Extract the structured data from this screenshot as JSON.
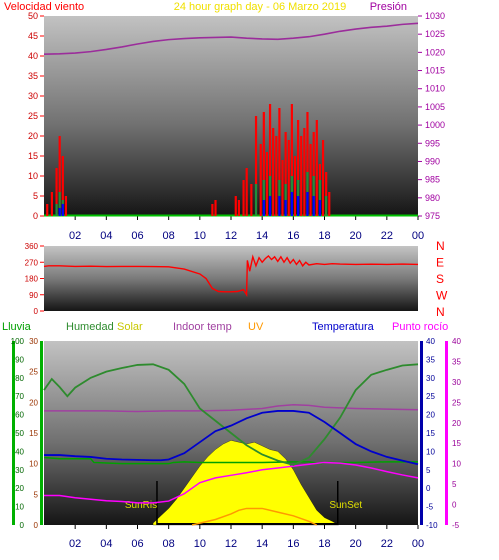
{
  "colors": {
    "wind_speed": "#ff0000",
    "wind_gust": "#1f8f3a",
    "wind_avg": "#0000ff",
    "pressure": "#9b2d9b",
    "direction": "#ff0000",
    "rain": "#00a000",
    "humidity": "#2e8b2e",
    "solar": "#ffff00",
    "indoor": "#a040a0",
    "uv": "#ff9900",
    "temperature": "#0000cc",
    "dewpoint": "#ff00ff",
    "title_color": "#f0e000",
    "label_red": "#ff0000",
    "label_purple": "#a000a0"
  },
  "chart_data": [
    {
      "type": "line",
      "title": "24 hour graph day - 06 Marzo 2019",
      "left_label": "Velocidad viento",
      "right_label": "Presión",
      "left_ticks": [
        0,
        5,
        10,
        15,
        20,
        25,
        30,
        35,
        40,
        45,
        50
      ],
      "right_ticks": [
        975,
        980,
        985,
        990,
        995,
        1000,
        1005,
        1010,
        1015,
        1020,
        1025,
        1030
      ],
      "x_ticks": [
        "02",
        "04",
        "06",
        "08",
        "10",
        "12",
        "14",
        "16",
        "18",
        "20",
        "22",
        "00"
      ],
      "ylim_left": [
        0,
        50
      ],
      "ylim_right": [
        975,
        1030
      ],
      "series": [
        {
          "key": "pressure",
          "axis": "right",
          "x": [
            0,
            1,
            2,
            3,
            4,
            5,
            6,
            7,
            8,
            9,
            10,
            11,
            12,
            13,
            14,
            15,
            16,
            17,
            18,
            19,
            20,
            21,
            22,
            23,
            24
          ],
          "y": [
            1019.5,
            1019.6,
            1019.8,
            1020.2,
            1020.8,
            1021.5,
            1022.3,
            1023.0,
            1023.5,
            1023.8,
            1024.0,
            1024.1,
            1024.2,
            1023.9,
            1023.7,
            1023.6,
            1023.9,
            1024.3,
            1025.0,
            1025.8,
            1026.4,
            1026.9,
            1027.2,
            1027.7,
            1028.0
          ]
        },
        {
          "key": "wind_speed",
          "axis": "left",
          "style": "bars",
          "x": [
            0.2,
            0.5,
            0.8,
            1.0,
            1.2,
            1.4,
            10.8,
            11.0,
            12.3,
            12.5,
            12.8,
            13.0,
            13.3,
            13.6,
            13.9,
            14.1,
            14.3,
            14.5,
            14.7,
            14.9,
            15.1,
            15.3,
            15.5,
            15.7,
            15.9,
            16.1,
            16.3,
            16.5,
            16.7,
            16.9,
            17.1,
            17.3,
            17.5,
            17.7,
            17.9,
            18.1,
            18.3
          ],
          "y": [
            3,
            6,
            12,
            20,
            15,
            5,
            3,
            4,
            5,
            4,
            9,
            12,
            8,
            25,
            18,
            26,
            16,
            28,
            22,
            20,
            27,
            14,
            21,
            19,
            28,
            15,
            24,
            20,
            22,
            26,
            18,
            21,
            24,
            13,
            19,
            11,
            6
          ]
        },
        {
          "key": "wind_gust",
          "axis": "left",
          "style": "bars",
          "x": [
            0.8,
            1.0,
            1.2,
            13.6,
            14.1,
            14.5,
            15.1,
            15.5,
            15.9,
            16.3,
            16.9,
            17.3,
            17.7,
            18.1
          ],
          "y": [
            3,
            6,
            4,
            8,
            9,
            10,
            9,
            8,
            10,
            9,
            11,
            10,
            9,
            5
          ]
        },
        {
          "key": "wind_avg",
          "axis": "left",
          "style": "bars",
          "x": [
            1.0,
            1.2,
            14.1,
            14.5,
            15.1,
            15.5,
            15.9,
            16.3,
            16.9,
            17.3,
            17.7
          ],
          "y": [
            2,
            3,
            4,
            5,
            5,
            4,
            6,
            5,
            6,
            5,
            4
          ]
        }
      ]
    },
    {
      "type": "line",
      "left_ticks": [
        0,
        90,
        180,
        270,
        360
      ],
      "right_letters": [
        "N",
        "W",
        "S",
        "E",
        "N"
      ],
      "ylim": [
        0,
        360
      ],
      "series": [
        {
          "key": "direction",
          "x": [
            0,
            0.3,
            1.0,
            2.0,
            3.0,
            4.0,
            5.0,
            6.0,
            7.0,
            8.0,
            9.0,
            10.0,
            10.4,
            10.8,
            11.2,
            11.6,
            12.0,
            12.4,
            12.8,
            13.0,
            13.05,
            13.2,
            13.4,
            13.6,
            13.8,
            14.0,
            14.2,
            14.4,
            14.6,
            14.8,
            15.0,
            15.2,
            15.4,
            15.6,
            15.8,
            16.0,
            16.2,
            16.4,
            16.6,
            16.8,
            17.0,
            17.5,
            18.0,
            18.5,
            19.0,
            20.0,
            21.0,
            22.0,
            23.0,
            24.0
          ],
          "y": [
            247,
            250,
            250,
            247,
            248,
            246,
            247,
            247,
            246,
            245,
            232,
            205,
            180,
            125,
            108,
            106,
            106,
            108,
            118,
            90,
            280,
            220,
            300,
            250,
            295,
            270,
            290,
            305,
            285,
            300,
            275,
            300,
            270,
            295,
            265,
            285,
            258,
            280,
            250,
            270,
            255,
            262,
            258,
            262,
            260,
            258,
            259,
            258,
            260,
            258
          ]
        }
      ]
    },
    {
      "type": "line",
      "labels": {
        "rain": "Lluvia",
        "humidity": "Humedad",
        "solar": "Solar",
        "indoor": "Indoor temp",
        "uv": "UV",
        "temperature": "Temperatura",
        "dewpoint": "Punto rocío",
        "sunrise": "SunRis",
        "sunset": "SunSet"
      },
      "rain_ticks": [
        0,
        10,
        20,
        30,
        40,
        50,
        60,
        70,
        80,
        90,
        100
      ],
      "humidity_ticks": [
        0,
        5,
        10,
        15,
        20,
        25,
        30
      ],
      "temp_ticks": [
        -10,
        -5,
        0,
        5,
        10,
        15,
        20,
        25,
        30,
        35,
        40
      ],
      "dew_ticks": [
        -5,
        0,
        5,
        10,
        15,
        20,
        25,
        30,
        35,
        40
      ],
      "x_ticks": [
        "02",
        "04",
        "06",
        "08",
        "10",
        "12",
        "14",
        "16",
        "18",
        "20",
        "22",
        "00"
      ],
      "sunrise_hour": 7.25,
      "sunset_hour": 18.85,
      "series": [
        {
          "key": "humidity",
          "axis": "humidity",
          "x": [
            0,
            0.5,
            1.0,
            1.5,
            2.0,
            3.0,
            4.0,
            5.0,
            6.0,
            7.0,
            8.0,
            9.0,
            9.5,
            10.0,
            11.0,
            12.0,
            13.0,
            14.0,
            15.0,
            16.0,
            17.0,
            18.0,
            19.0,
            20.0,
            21.0,
            22.0,
            23.0,
            24.0
          ],
          "y": [
            22.0,
            23.8,
            22.5,
            21.0,
            22.4,
            24.0,
            25.0,
            25.6,
            26.1,
            26.2,
            25.3,
            23.0,
            21.0,
            19.0,
            17.0,
            15.0,
            13.0,
            11.5,
            10.5,
            9.8,
            11.0,
            14.0,
            17.5,
            22.0,
            24.5,
            25.3,
            26.0,
            26.2
          ]
        },
        {
          "key": "indoor",
          "axis": "humidity",
          "x": [
            0,
            2,
            4,
            6,
            8,
            10,
            12,
            14,
            15,
            16,
            17,
            18,
            20,
            22,
            24
          ],
          "y": [
            18.6,
            18.6,
            18.6,
            18.5,
            18.6,
            18.6,
            18.7,
            19.0,
            19.4,
            19.6,
            19.5,
            19.2,
            19.0,
            18.9,
            18.8
          ]
        },
        {
          "key": "rain",
          "axis": "humidity",
          "x": [
            0,
            1,
            2,
            3,
            3.2,
            4,
            5,
            6,
            7,
            8,
            8.3,
            9,
            10,
            12,
            14,
            16,
            17,
            17.8,
            18,
            19,
            20,
            22,
            24
          ],
          "y": [
            11.0,
            10.8,
            10.8,
            10.8,
            10.2,
            10.1,
            10.0,
            10.0,
            10.0,
            10.0,
            10.2,
            10.3,
            10.2,
            10.2,
            10.2,
            10.3,
            10.3,
            10.0,
            10.2,
            10.2,
            10.2,
            10.3,
            10.3
          ]
        },
        {
          "key": "temperature",
          "axis": "temp",
          "x": [
            0,
            1,
            2,
            3,
            4,
            5,
            6,
            7,
            7.5,
            8,
            9,
            10,
            11,
            12,
            13,
            14,
            15,
            16,
            17,
            18,
            19,
            20,
            21,
            22,
            23,
            24
          ],
          "y": [
            9.0,
            9.0,
            8.7,
            8.5,
            8.0,
            7.8,
            7.7,
            7.6,
            7.6,
            7.8,
            9.5,
            12.5,
            15.5,
            17.0,
            19.0,
            20.5,
            21.0,
            21.0,
            20.5,
            18.0,
            15.0,
            12.0,
            10.0,
            8.5,
            7.5,
            6.5
          ]
        },
        {
          "key": "dewpoint",
          "axis": "temp",
          "x": [
            0,
            1,
            2,
            3,
            4,
            5,
            6,
            7,
            8,
            9,
            10,
            11,
            12,
            13,
            14,
            15,
            16,
            17,
            18,
            19,
            20,
            21,
            22,
            23,
            24
          ],
          "y": [
            -2.0,
            -2.0,
            -2.6,
            -3.0,
            -3.4,
            -3.6,
            -4.0,
            -4.0,
            -3.5,
            -1.5,
            1.5,
            2.8,
            3.5,
            4.2,
            5.0,
            5.5,
            6.0,
            6.5,
            7.0,
            6.8,
            6.3,
            5.5,
            4.5,
            3.6,
            2.8
          ]
        },
        {
          "key": "solar",
          "axis": "rain",
          "x": [
            7.0,
            7.5,
            8.0,
            8.5,
            9.0,
            9.5,
            10.0,
            10.5,
            11.0,
            11.5,
            12.0,
            12.5,
            13.0,
            13.5,
            14.0,
            14.5,
            15.0,
            15.5,
            16.0,
            16.5,
            17.0,
            17.5,
            18.0,
            18.5,
            18.9
          ],
          "y": [
            1,
            5,
            9,
            14,
            20,
            26,
            32,
            37,
            41,
            44,
            46,
            45,
            44,
            45,
            43,
            41,
            40,
            36,
            30,
            22,
            15,
            8,
            4,
            2,
            0
          ]
        },
        {
          "key": "uv",
          "axis": "rain",
          "x": [
            9.5,
            10.0,
            11.0,
            12.0,
            12.5,
            13.0,
            13.5,
            14.0,
            15.0,
            16.0,
            17.0,
            17.5
          ],
          "y": [
            0,
            1,
            3,
            6,
            8,
            9,
            9,
            9,
            7,
            5,
            2,
            0
          ]
        }
      ]
    }
  ]
}
